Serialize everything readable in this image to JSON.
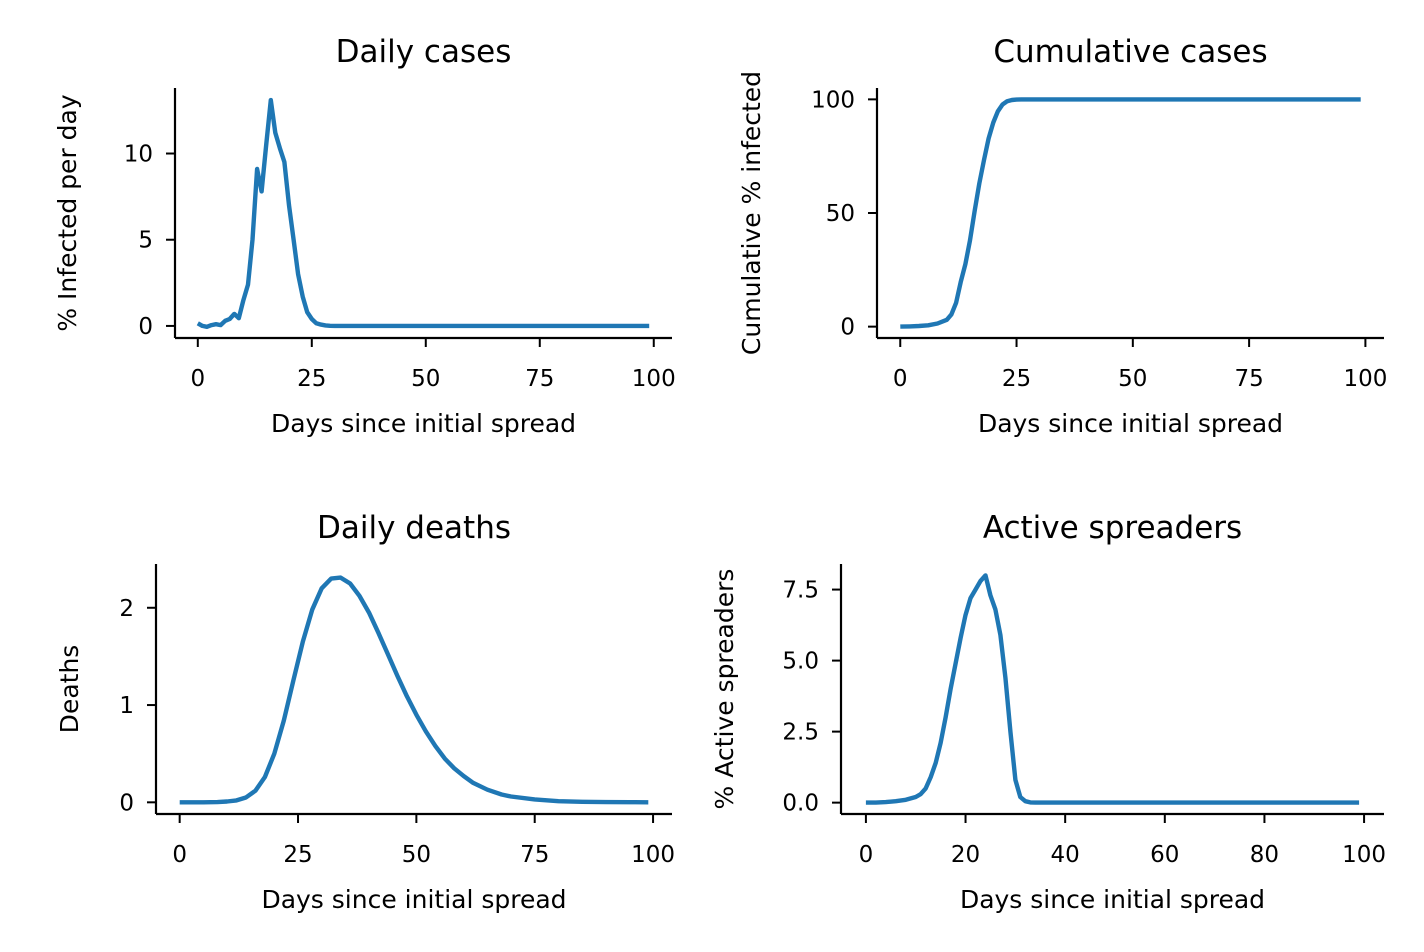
{
  "chart_data": [
    {
      "type": "line",
      "title": "Daily cases",
      "xlabel": "Days since initial spread",
      "ylabel": "% Infected per day",
      "xlim": [
        -5,
        104
      ],
      "ylim": [
        -0.7,
        13.8
      ],
      "xticks": [
        0,
        25,
        50,
        75,
        100
      ],
      "yticks": [
        0,
        5,
        10
      ],
      "grid": false,
      "color": "#1f77b4",
      "series": [
        {
          "x": [
            0,
            1,
            2,
            3,
            4,
            5,
            6,
            7,
            8,
            9,
            10,
            11,
            12,
            13,
            14,
            15,
            16,
            17,
            18,
            19,
            20,
            21,
            22,
            23,
            24,
            25,
            26,
            27,
            28,
            29,
            30,
            35,
            40,
            50,
            60,
            70,
            80,
            90,
            99
          ],
          "y": [
            0.15,
            0.0,
            -0.05,
            0.05,
            0.1,
            0.05,
            0.3,
            0.4,
            0.7,
            0.45,
            1.5,
            2.4,
            5.0,
            9.1,
            7.8,
            10.5,
            13.1,
            11.2,
            10.3,
            9.5,
            7.0,
            5.0,
            3.0,
            1.7,
            0.8,
            0.4,
            0.15,
            0.08,
            0.03,
            0.01,
            0,
            0,
            0,
            0,
            0,
            0,
            0,
            0,
            0
          ]
        }
      ]
    },
    {
      "type": "line",
      "title": "Cumulative cases",
      "xlabel": "Days since initial spread",
      "ylabel": "Cumulative % infected",
      "xlim": [
        -5,
        104
      ],
      "ylim": [
        -5,
        105
      ],
      "xticks": [
        0,
        25,
        50,
        75,
        100
      ],
      "yticks": [
        0,
        50,
        100
      ],
      "grid": false,
      "color": "#1f77b4",
      "series": [
        {
          "x": [
            0,
            2,
            4,
            6,
            8,
            10,
            11,
            12,
            13,
            14,
            15,
            16,
            17,
            18,
            19,
            20,
            21,
            22,
            23,
            24,
            25,
            26,
            28,
            30,
            35,
            40,
            50,
            60,
            70,
            80,
            90,
            99
          ],
          "y": [
            0,
            0.1,
            0.3,
            0.6,
            1.4,
            3.0,
            5.4,
            10.5,
            19.6,
            27.5,
            38.0,
            51.0,
            63.0,
            73.3,
            82.8,
            89.8,
            94.8,
            97.8,
            99.2,
            99.7,
            99.9,
            100,
            100,
            100,
            100,
            100,
            100,
            100,
            100,
            100,
            100,
            100
          ]
        }
      ]
    },
    {
      "type": "line",
      "title": "Daily deaths",
      "xlabel": "Days since initial spread",
      "ylabel": "Deaths",
      "xlim": [
        -5,
        104
      ],
      "ylim": [
        -0.12,
        2.45
      ],
      "xticks": [
        0,
        25,
        50,
        75,
        100
      ],
      "yticks": [
        0,
        1,
        2
      ],
      "grid": false,
      "color": "#1f77b4",
      "series": [
        {
          "x": [
            0,
            5,
            8,
            10,
            12,
            14,
            16,
            18,
            20,
            22,
            24,
            26,
            28,
            30,
            32,
            34,
            36,
            38,
            40,
            42,
            44,
            46,
            48,
            50,
            52,
            54,
            56,
            58,
            60,
            62,
            65,
            68,
            70,
            75,
            80,
            85,
            90,
            95,
            99
          ],
          "y": [
            0,
            0,
            0.002,
            0.008,
            0.02,
            0.05,
            0.12,
            0.26,
            0.5,
            0.84,
            1.25,
            1.65,
            1.98,
            2.2,
            2.3,
            2.31,
            2.25,
            2.12,
            1.95,
            1.74,
            1.52,
            1.3,
            1.09,
            0.9,
            0.73,
            0.58,
            0.45,
            0.35,
            0.27,
            0.2,
            0.13,
            0.08,
            0.06,
            0.03,
            0.012,
            0.005,
            0.002,
            0.001,
            0
          ]
        }
      ]
    },
    {
      "type": "line",
      "title": "Active spreaders",
      "xlabel": "Days since initial spread",
      "ylabel": "% Active spreaders",
      "xlim": [
        -5,
        104
      ],
      "ylim": [
        -0.4,
        8.4
      ],
      "xticks": [
        0,
        20,
        40,
        60,
        80,
        100
      ],
      "yticks": [
        0.0,
        2.5,
        5.0,
        7.5
      ],
      "tick_labels": [
        "0.0",
        "2.5",
        "5.0",
        "7.5"
      ],
      "grid": false,
      "color": "#1f77b4",
      "series": [
        {
          "x": [
            0,
            2,
            4,
            6,
            8,
            10,
            11,
            12,
            13,
            14,
            15,
            16,
            17,
            18,
            19,
            20,
            21,
            22,
            23,
            24,
            25,
            26,
            27,
            28,
            29,
            30,
            31,
            32,
            33,
            34,
            35,
            40,
            50,
            60,
            70,
            80,
            90,
            99
          ],
          "y": [
            0,
            0,
            0.02,
            0.05,
            0.1,
            0.2,
            0.3,
            0.5,
            0.9,
            1.4,
            2.1,
            3.0,
            4.0,
            4.9,
            5.8,
            6.6,
            7.2,
            7.5,
            7.8,
            8.0,
            7.3,
            6.8,
            5.9,
            4.4,
            2.5,
            0.8,
            0.2,
            0.05,
            0.01,
            0,
            0,
            0,
            0,
            0,
            0,
            0,
            0,
            0
          ]
        }
      ]
    }
  ]
}
